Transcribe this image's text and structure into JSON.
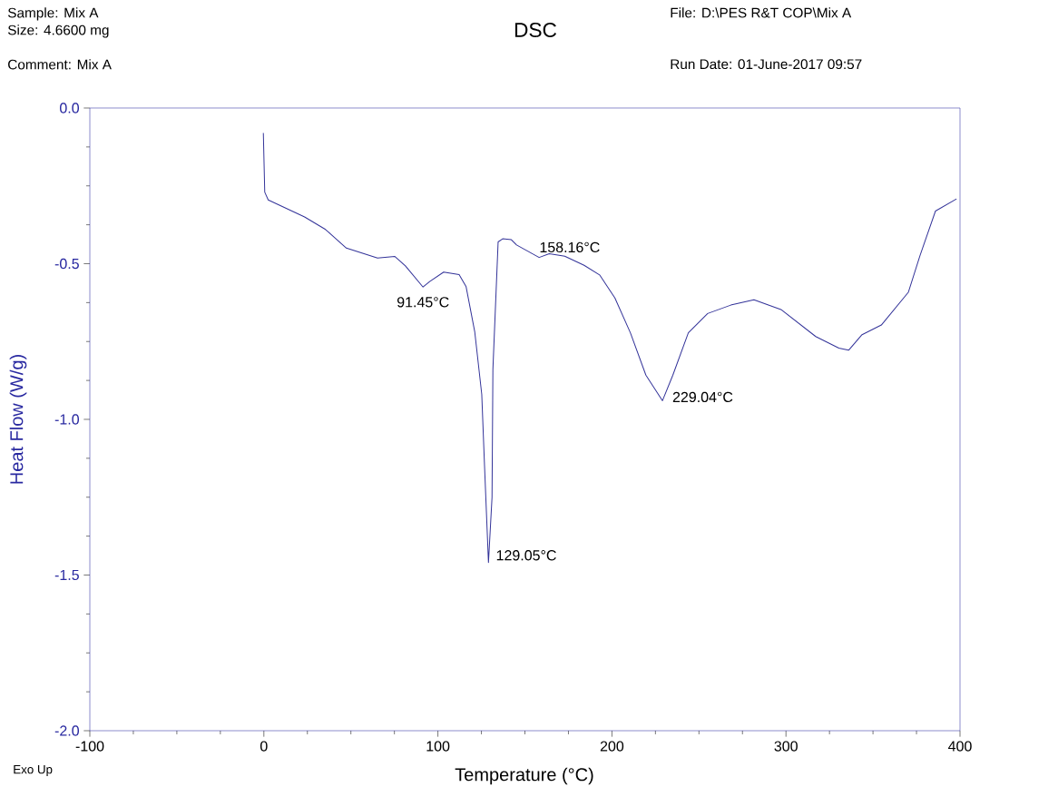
{
  "chart_data": {
    "type": "line",
    "title": "DSC",
    "xlabel": "Temperature (°C)",
    "ylabel": "Heat Flow (W/g)",
    "color": "#333399",
    "marker": "none",
    "x": [
      -0.3,
      0.5,
      2.5,
      23.4,
      35.4,
      47.4,
      65.3,
      75.3,
      81.3,
      91.45,
      95.3,
      103.3,
      112.2,
      116.2,
      121.2,
      125.2,
      126.8,
      129.05,
      131.1,
      131.6,
      134.6,
      137.2,
      142.2,
      145.2,
      158.16,
      164,
      172.9,
      184,
      192.9,
      201.7,
      210.6,
      219.5,
      229.04,
      235,
      243.9,
      255,
      268.3,
      281.6,
      297.1,
      317.1,
      330.4,
      336,
      343.7,
      354.8,
      370.3,
      377,
      385.9,
      398
    ],
    "values": [
      -0.08,
      -0.27,
      -0.295,
      -0.35,
      -0.39,
      -0.45,
      -0.482,
      -0.477,
      -0.507,
      -0.575,
      -0.557,
      -0.527,
      -0.535,
      -0.574,
      -0.72,
      -0.92,
      -1.15,
      -1.46,
      -1.25,
      -0.84,
      -0.43,
      -0.42,
      -0.423,
      -0.44,
      -0.48,
      -0.468,
      -0.476,
      -0.505,
      -0.536,
      -0.61,
      -0.722,
      -0.858,
      -0.94,
      -0.858,
      -0.722,
      -0.66,
      -0.633,
      -0.616,
      -0.647,
      -0.734,
      -0.771,
      -0.778,
      -0.728,
      -0.697,
      -0.592,
      -0.474,
      -0.331,
      -0.292
    ],
    "xlim": [
      -100,
      400
    ],
    "ylim": [
      -2,
      0
    ],
    "xticks": [
      -100,
      0,
      100,
      200,
      300,
      400
    ],
    "yticks": [
      {
        "value": -2,
        "label": "-2.0"
      },
      {
        "value": -1.5,
        "label": "-1.5"
      },
      {
        "value": -1,
        "label": "-1.0"
      },
      {
        "value": -0.5,
        "label": "-0.5"
      },
      {
        "value": 0,
        "label": "0.0"
      }
    ],
    "annotations": [
      "Sample: Mix A",
      "Size:  4.6600 mg",
      "Comment: Mix A",
      "File: D:\\PES R&T COP\\Mix A",
      "Run Date: 01-June-2017  09:57",
      "Exo Up",
      {
        "text": "91.45°C",
        "x": 91.45,
        "y": -0.575
      },
      {
        "text": "129.05°C",
        "x": 129.05,
        "y": -1.46
      },
      {
        "text": "158.16°C",
        "x": 158.16,
        "y": -0.48
      },
      {
        "text": "229.04°C",
        "x": 229.04,
        "y": -0.94
      }
    ]
  }
}
